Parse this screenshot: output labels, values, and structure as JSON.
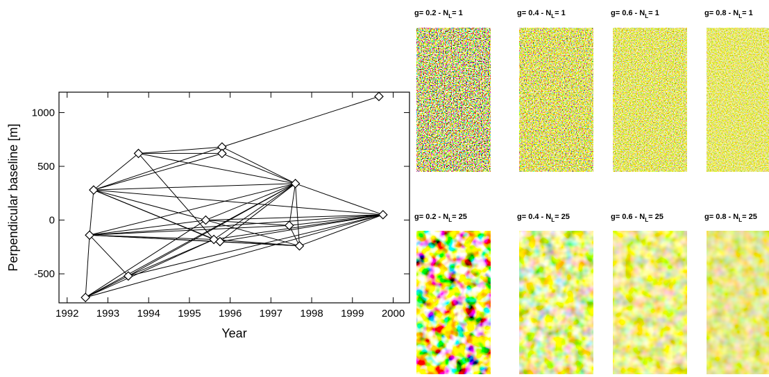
{
  "chart_data": {
    "type": "scatter",
    "xlabel": "Year",
    "ylabel": "Perpendicular baseline [m]",
    "x": [
      1992.45,
      1992.55,
      1992.65,
      1993.5,
      1993.75,
      1995.4,
      1995.6,
      1995.75,
      1995.8,
      1995.8,
      1997.45,
      1997.6,
      1997.7,
      1999.65,
      1999.75
    ],
    "y": [
      -720,
      -140,
      280,
      -520,
      620,
      0,
      -180,
      -200,
      680,
      620,
      -50,
      340,
      -240,
      1150,
      50
    ],
    "links": [
      [
        0,
        1
      ],
      [
        0,
        3
      ],
      [
        0,
        5
      ],
      [
        0,
        14
      ],
      [
        0,
        11
      ],
      [
        0,
        6
      ],
      [
        1,
        2
      ],
      [
        1,
        3
      ],
      [
        1,
        5
      ],
      [
        1,
        6
      ],
      [
        1,
        7
      ],
      [
        1,
        10
      ],
      [
        1,
        12
      ],
      [
        1,
        14
      ],
      [
        1,
        11
      ],
      [
        2,
        4
      ],
      [
        2,
        8
      ],
      [
        2,
        11
      ],
      [
        2,
        6
      ],
      [
        2,
        7
      ],
      [
        2,
        14
      ],
      [
        2,
        5
      ],
      [
        3,
        6
      ],
      [
        3,
        11
      ],
      [
        3,
        14
      ],
      [
        4,
        8
      ],
      [
        4,
        9
      ],
      [
        4,
        11
      ],
      [
        4,
        6
      ],
      [
        8,
        13
      ],
      [
        8,
        11
      ],
      [
        9,
        11
      ],
      [
        9,
        2
      ],
      [
        5,
        14
      ],
      [
        5,
        12
      ],
      [
        5,
        10
      ],
      [
        5,
        11
      ],
      [
        6,
        11
      ],
      [
        7,
        11
      ],
      [
        6,
        14
      ],
      [
        7,
        14
      ],
      [
        10,
        14
      ],
      [
        12,
        14
      ],
      [
        11,
        14
      ],
      [
        6,
        12
      ],
      [
        7,
        12
      ],
      [
        10,
        11
      ],
      [
        11,
        12
      ],
      [
        10,
        12
      ]
    ],
    "marker": "diamond",
    "color": "#000000",
    "xlim": [
      1991.8,
      2000.4
    ],
    "ylim": [
      -770,
      1190
    ],
    "xticks": [
      1992,
      1993,
      1994,
      1995,
      1996,
      1997,
      1998,
      1999,
      2000
    ],
    "yticks": [
      -500,
      0,
      500,
      1000
    ]
  },
  "panels": [
    {
      "prefix": "g= 0.2 - N",
      "sub": "L",
      "suffix": "= 1"
    },
    {
      "prefix": "g= 0.4 - N",
      "sub": "L",
      "suffix": "= 1"
    },
    {
      "prefix": "g= 0.6 - N",
      "sub": "L",
      "suffix": "= 1"
    },
    {
      "prefix": "g= 0.8 - N",
      "sub": "L",
      "suffix": "= 1"
    },
    {
      "prefix": "g= 0.2 - N",
      "sub": "L",
      "suffix": "= 25"
    },
    {
      "prefix": "g= 0.4 - N",
      "sub": "L",
      "suffix": "= 25"
    },
    {
      "prefix": "g= 0.6 - N",
      "sub": "L",
      "suffix": "= 25"
    },
    {
      "prefix": "g= 0.8 - N",
      "sub": "L",
      "suffix": "= 25"
    }
  ]
}
